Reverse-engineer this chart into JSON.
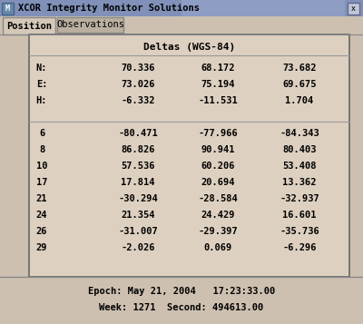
{
  "title_bar": "XCOR Integrity Monitor Solutions",
  "tab1": "Position",
  "tab2": "Observations",
  "table_title": "Deltas (WGS-84)",
  "rows": [
    [
      "N:",
      "70.336",
      "68.172",
      "73.682"
    ],
    [
      "E:",
      "73.026",
      "75.194",
      "69.675"
    ],
    [
      "H:",
      "-6.332",
      "-11.531",
      "1.704"
    ],
    [
      "6",
      "-80.471",
      "-77.966",
      "-84.343"
    ],
    [
      "8",
      "86.826",
      "90.941",
      "80.403"
    ],
    [
      "10",
      "57.536",
      "60.206",
      "53.408"
    ],
    [
      "17",
      "17.814",
      "20.694",
      "13.362"
    ],
    [
      "21",
      "-30.294",
      "-28.584",
      "-32.937"
    ],
    [
      "24",
      "21.354",
      "24.429",
      "16.601"
    ],
    [
      "26",
      "-31.007",
      "-29.397",
      "-35.736"
    ],
    [
      "29",
      "-2.026",
      "0.069",
      "-6.296"
    ]
  ],
  "epoch_line": "Epoch: May 21, 2004   17:23:33.00",
  "week_line": "Week: 1271  Second: 494613.00",
  "bg_color": "#cdc0b0",
  "title_bg_left": "#8899bb",
  "title_bg_right": "#aabbdd",
  "tab_active_bg": "#d4c8b8",
  "tab_inactive_bg": "#bbb0a0",
  "table_bg": "#ddd0c0",
  "footer_bg": "#cdc0b0",
  "border_color": "#888888",
  "text_color": "#000000",
  "title_text_color": "#000000"
}
